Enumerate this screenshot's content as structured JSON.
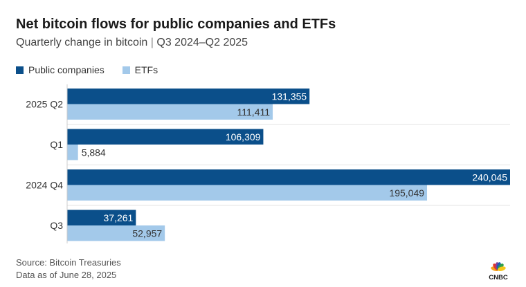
{
  "chart_data": {
    "type": "bar",
    "orientation": "horizontal",
    "title": "Net bitcoin flows for public companies and ETFs",
    "subtitle_main": "Quarterly change in bitcoin",
    "subtitle_sep": "|",
    "subtitle_range": "Q3 2024–Q2 2025",
    "categories": [
      "2025 Q2",
      "Q1",
      "2024 Q4",
      "Q3"
    ],
    "series": [
      {
        "name": "Public companies",
        "values": [
          131355,
          106309,
          240045,
          37261
        ],
        "labels": [
          "131,355",
          "106,309",
          "240,045",
          "37,261"
        ],
        "color": "#0b4f8a"
      },
      {
        "name": "ETFs",
        "values": [
          111411,
          5884,
          195049,
          52957
        ],
        "labels": [
          "111,411",
          "5,884",
          "195,049",
          "52,957"
        ],
        "color": "#a3c9ea"
      }
    ],
    "xlim": [
      0,
      240045
    ],
    "grid": false,
    "legend_position": "top-left"
  },
  "footer": {
    "source": "Source: Bitcoin Treasuries",
    "asof": "Data as of June 28, 2025"
  },
  "logo": {
    "text": "CNBC",
    "colors": [
      "#f4a21d",
      "#e0362c",
      "#8a3c9a",
      "#1f5fb0",
      "#2fa04a",
      "#f7c71a"
    ]
  }
}
